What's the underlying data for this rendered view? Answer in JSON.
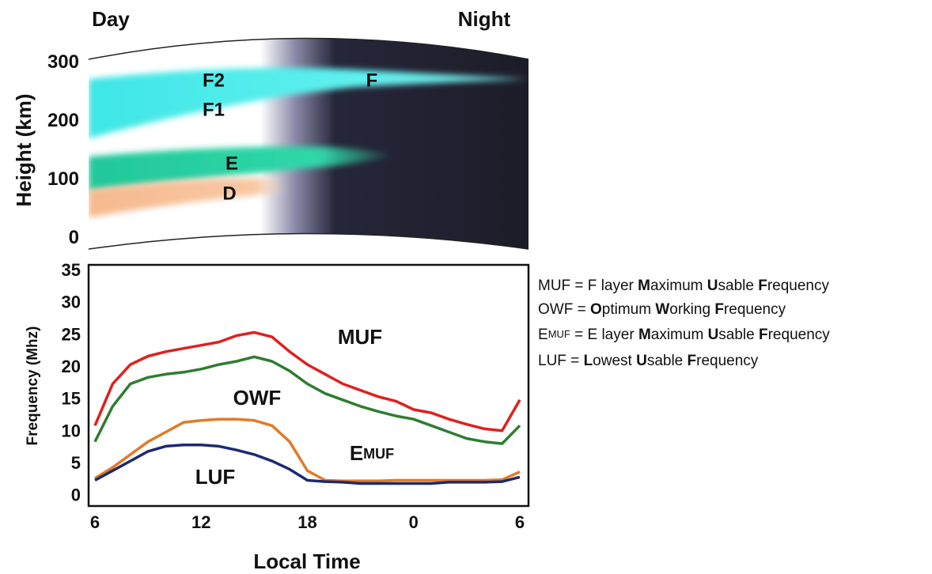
{
  "chart_data": [
    {
      "type": "diagram",
      "corner_labels": [
        "Day",
        "Night"
      ],
      "ylabel": "Height (km)",
      "ylim": [
        -18,
        347
      ],
      "yticks": [
        0,
        100,
        200,
        300
      ],
      "layer_labels": [
        "F2",
        "F1",
        "F",
        "E",
        "D"
      ]
    },
    {
      "type": "line",
      "xlabel": "Local Time",
      "ylabel": "Frequency (Mhz)",
      "xlim": [
        6,
        30
      ],
      "xticks": [
        6,
        12,
        18,
        {
          "value": 24,
          "label": "0"
        },
        {
          "value": 30,
          "label": "6"
        }
      ],
      "ylim": [
        -1.5,
        36
      ],
      "yticks": [
        0,
        5,
        10,
        15,
        20,
        25,
        30,
        35
      ],
      "x": [
        6,
        7,
        8,
        9,
        10,
        11,
        12,
        13,
        14,
        15,
        16,
        17,
        18,
        19,
        20,
        21,
        22,
        23,
        24,
        25,
        26,
        27,
        28,
        29,
        30
      ],
      "series": [
        {
          "name": "MUF",
          "color": "#e0201e",
          "values": [
            11,
            17.5,
            20.5,
            21.8,
            22.5,
            23,
            23.5,
            24,
            25,
            25.5,
            24.8,
            22.5,
            20.5,
            19,
            17.5,
            16.5,
            15.5,
            14.8,
            13.5,
            13,
            12,
            11.2,
            10.5,
            10.2,
            15
          ]
        },
        {
          "name": "OWF",
          "color": "#2e7d32",
          "values": [
            8.5,
            14,
            17.5,
            18.5,
            19,
            19.3,
            19.8,
            20.5,
            21,
            21.7,
            21,
            19.5,
            17.5,
            16,
            15,
            14,
            13.2,
            12.5,
            12,
            11,
            10,
            9,
            8.5,
            8.2,
            11
          ]
        },
        {
          "name": "EMUF",
          "color": "#e07b2a",
          "values": [
            2.8,
            4.5,
            6.5,
            8.5,
            10,
            11.5,
            11.8,
            12,
            12,
            11.8,
            11,
            8.5,
            4,
            2.5,
            2.4,
            2.4,
            2.4,
            2.5,
            2.5,
            2.5,
            2.5,
            2.5,
            2.5,
            2.6,
            3.8
          ]
        },
        {
          "name": "LUF",
          "color": "#1c2a6e",
          "values": [
            2.5,
            4,
            5.5,
            7,
            7.8,
            8,
            8,
            7.8,
            7.2,
            6.5,
            5.5,
            4.2,
            2.5,
            2.3,
            2.2,
            2,
            2,
            2,
            2,
            2,
            2.2,
            2.2,
            2.2,
            2.3,
            3
          ]
        }
      ],
      "legend": [
        {
          "parts": [
            {
              "text": "MUF = F layer "
            },
            {
              "text": "M",
              "bold": true
            },
            {
              "text": "aximum "
            },
            {
              "text": "U",
              "bold": true
            },
            {
              "text": "sable "
            },
            {
              "text": "F",
              "bold": true
            },
            {
              "text": "requency"
            }
          ]
        },
        {
          "parts": [
            {
              "text": "OWF = "
            },
            {
              "text": "O",
              "bold": true
            },
            {
              "text": "ptimum "
            },
            {
              "text": "W",
              "bold": true
            },
            {
              "text": "orking "
            },
            {
              "text": "F",
              "bold": true
            },
            {
              "text": "requency"
            }
          ]
        },
        {
          "parts": [
            {
              "text": "E"
            },
            {
              "text": "MUF",
              "small": true
            },
            {
              "text": " = E layer "
            },
            {
              "text": "M",
              "bold": true
            },
            {
              "text": "aximum "
            },
            {
              "text": "U",
              "bold": true
            },
            {
              "text": "sable "
            },
            {
              "text": "F",
              "bold": true
            },
            {
              "text": "requency"
            }
          ]
        },
        {
          "parts": [
            {
              "text": "LUF = "
            },
            {
              "text": "L",
              "bold": true
            },
            {
              "text": "owest "
            },
            {
              "text": "U",
              "bold": true
            },
            {
              "text": "sable "
            },
            {
              "text": "F",
              "bold": true
            },
            {
              "text": "requency"
            }
          ]
        }
      ]
    }
  ]
}
